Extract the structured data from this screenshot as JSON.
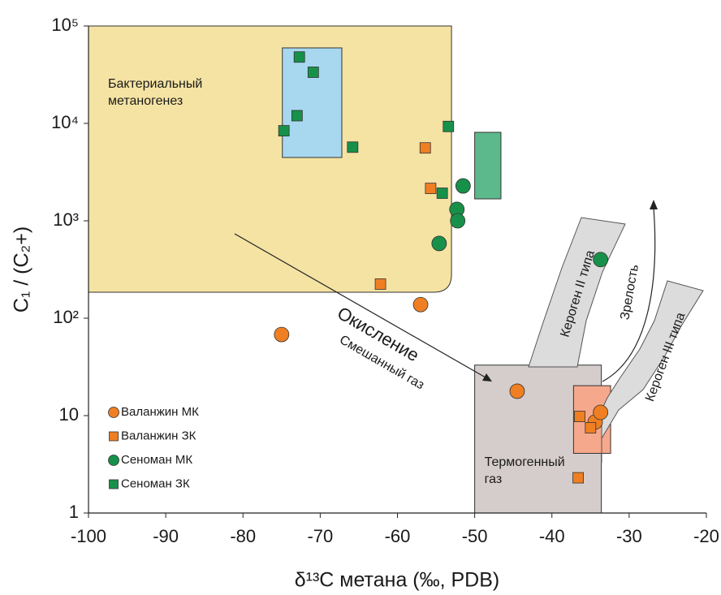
{
  "chart_data": {
    "type": "scatter",
    "xlabel": "δ¹³C метана (‰, PDB)",
    "ylabel": "C₁ / (C₂+)",
    "xlim": [
      -100,
      -20
    ],
    "xticks": [
      -100,
      -90,
      -80,
      -70,
      -60,
      -50,
      -40,
      -30,
      -20
    ],
    "ylim": [
      1,
      100000
    ],
    "yscale": "log",
    "yticks": [
      1,
      10,
      {
        "value": 100,
        "label": "10²"
      },
      {
        "value": 1000,
        "label": "10³"
      },
      {
        "value": 10000,
        "label": "10⁴"
      },
      {
        "value": 100000,
        "label": "10⁵"
      }
    ],
    "regions": [
      {
        "label": [
          "Бактериальный",
          "метаногенез"
        ],
        "xlim": [
          -100,
          -53
        ],
        "ylim": [
          185,
          100000
        ],
        "color": "#f5e3a3",
        "corner": "rounded"
      },
      {
        "xlim": [
          -74.9,
          -67.2
        ],
        "ylim": [
          4470,
          59600
        ],
        "color": "#a8d8f0"
      },
      {
        "xlim": [
          -50,
          -46.6
        ],
        "ylim": [
          1680,
          8100
        ],
        "color": "#5cb98b"
      },
      {
        "label": [
          "Термогенный",
          "газ"
        ],
        "xlim": [
          -50,
          -33.6
        ],
        "ylim": [
          1,
          33
        ],
        "color": "#d5cdcc"
      },
      {
        "xlim": [
          -37.2,
          -32.4
        ],
        "ylim": [
          4.1,
          20.3
        ],
        "color": "#f6a88c"
      }
    ],
    "annotations": {
      "oxidation": "Окисление",
      "mixed": "Смешанный газ",
      "kerogen2": "Кероген II типа",
      "kerogen3": "Кероген III типа",
      "maturity": "Зрелость"
    },
    "series": [
      {
        "name": "Валанжин МК",
        "marker": "circle",
        "color": "#ef7f22",
        "x": [
          -75,
          -57,
          -44.5,
          -34.4,
          -33.7
        ],
        "values": [
          68,
          138,
          17.8,
          8.6,
          10.8
        ]
      },
      {
        "name": "Валанжин ЗК",
        "marker": "square",
        "color": "#ef7f22",
        "x": [
          -56.4,
          -55.7,
          -62.2,
          -36.4,
          -35.0,
          -36.6
        ],
        "values": [
          5600,
          2150,
          224,
          9.8,
          7.5,
          2.3
        ]
      },
      {
        "name": "Сеноман МК",
        "marker": "circle",
        "color": "#17914a",
        "x": [
          -51.5,
          -52.3,
          -52.2,
          -54.6,
          -33.7
        ],
        "values": [
          2280,
          1310,
          1000,
          585,
          400
        ]
      },
      {
        "name": "Сеноман ЗК",
        "marker": "square",
        "color": "#17914a",
        "x": [
          -72.7,
          -70.9,
          -73.0,
          -74.7,
          -65.8,
          -53.4,
          -54.2
        ],
        "values": [
          48000,
          33500,
          12000,
          8400,
          5700,
          9300,
          1920
        ]
      }
    ]
  }
}
